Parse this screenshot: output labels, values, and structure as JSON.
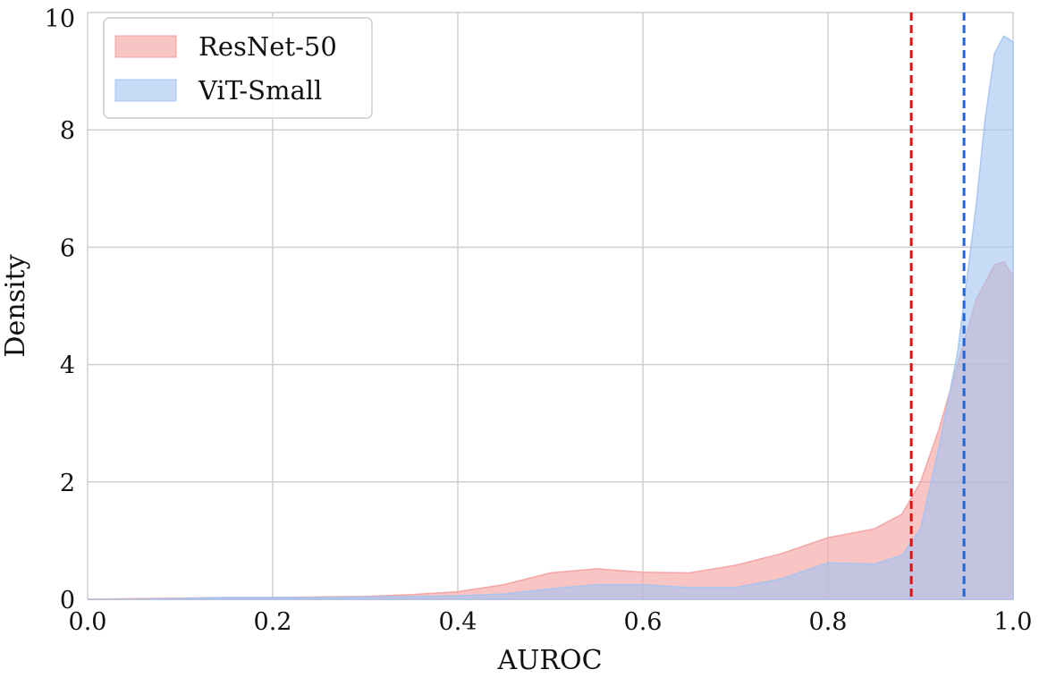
{
  "chart_data": {
    "type": "area",
    "xlabel": "AUROC",
    "ylabel": "Density",
    "xlim": [
      0.0,
      1.0
    ],
    "ylim": [
      0,
      10
    ],
    "x_ticks": [
      "0.0",
      "0.2",
      "0.4",
      "0.6",
      "0.8",
      "1.0"
    ],
    "y_ticks": [
      "0",
      "2",
      "4",
      "6",
      "8",
      "10"
    ],
    "grid": true,
    "legend_position": "top-left",
    "series": [
      {
        "name": "ResNet-50",
        "color": "#f4a0a0",
        "x": [
          0.0,
          0.05,
          0.1,
          0.15,
          0.2,
          0.25,
          0.3,
          0.35,
          0.4,
          0.45,
          0.5,
          0.55,
          0.6,
          0.65,
          0.7,
          0.75,
          0.8,
          0.85,
          0.88,
          0.9,
          0.92,
          0.94,
          0.96,
          0.98,
          0.99,
          1.0
        ],
        "values": [
          0.0,
          0.01,
          0.02,
          0.03,
          0.03,
          0.04,
          0.05,
          0.08,
          0.13,
          0.25,
          0.45,
          0.52,
          0.46,
          0.45,
          0.58,
          0.78,
          1.05,
          1.2,
          1.45,
          2.0,
          2.9,
          4.0,
          5.1,
          5.7,
          5.75,
          5.5
        ]
      },
      {
        "name": "ViT-Small",
        "color": "#a4c4f0",
        "x": [
          0.0,
          0.05,
          0.1,
          0.15,
          0.2,
          0.25,
          0.3,
          0.35,
          0.4,
          0.45,
          0.5,
          0.55,
          0.6,
          0.65,
          0.7,
          0.75,
          0.8,
          0.85,
          0.88,
          0.9,
          0.92,
          0.94,
          0.96,
          0.97,
          0.98,
          0.99,
          1.0
        ],
        "values": [
          0.0,
          0.0,
          0.01,
          0.03,
          0.03,
          0.03,
          0.04,
          0.05,
          0.06,
          0.09,
          0.18,
          0.25,
          0.25,
          0.2,
          0.2,
          0.35,
          0.62,
          0.6,
          0.75,
          1.2,
          2.6,
          4.2,
          6.7,
          8.2,
          9.3,
          9.6,
          9.5
        ]
      }
    ],
    "vlines": [
      {
        "x": 0.89,
        "color": "#dd1111",
        "style": "dashed"
      },
      {
        "x": 0.947,
        "color": "#2266dd",
        "style": "dashed"
      }
    ]
  }
}
